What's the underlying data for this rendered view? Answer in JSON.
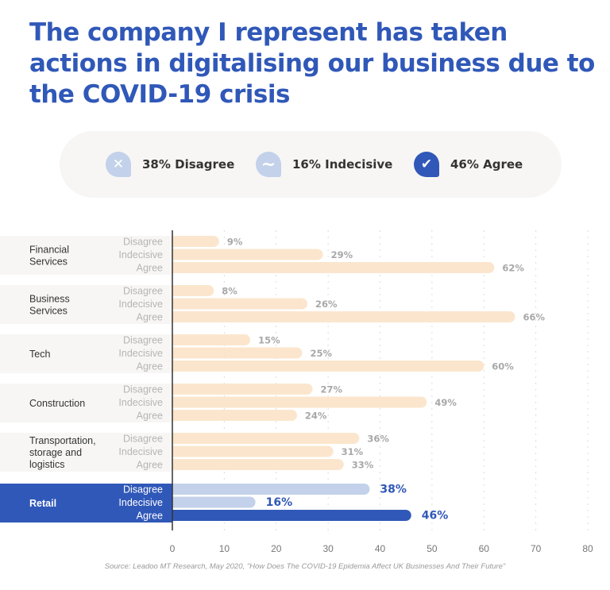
{
  "title": "The company I represent has taken actions in digitalising our business due to the COVID-19 crisis",
  "legend": [
    {
      "label": "38% Disagree",
      "icon": "x-icon",
      "color": "#c3d1ea"
    },
    {
      "label": "16% Indecisive",
      "icon": "tilde-icon",
      "color": "#c3d1ea"
    },
    {
      "label": "46% Agree",
      "icon": "check-icon",
      "color": "#3058b8"
    }
  ],
  "colors": {
    "bar": "#fbe6cd",
    "highlight_light": "#c3d1ea",
    "highlight_dark": "#3058b8",
    "value_label": "#a8a8a8",
    "band": "#f7f6f4"
  },
  "chart_data": {
    "type": "bar",
    "orientation": "horizontal",
    "response_labels": [
      "Disagree",
      "Indecisive",
      "Agree"
    ],
    "groups": [
      {
        "name": "Financial Services",
        "values": [
          9,
          29,
          62
        ],
        "labels": [
          "9%",
          "29%",
          "62%"
        ]
      },
      {
        "name": "Business Services",
        "values": [
          8,
          26,
          66
        ],
        "labels": [
          "8%",
          "26%",
          "66%"
        ]
      },
      {
        "name": "Tech",
        "values": [
          15,
          25,
          60
        ],
        "labels": [
          "15%",
          "25%",
          "60%"
        ]
      },
      {
        "name": "Construction",
        "values": [
          27,
          49,
          24
        ],
        "labels": [
          "27%",
          "49%",
          "24%"
        ]
      },
      {
        "name": "Transportation, storage and logistics",
        "values": [
          36,
          31,
          33
        ],
        "labels": [
          "36%",
          "31%",
          "33%"
        ]
      },
      {
        "name": "Retail",
        "values": [
          38,
          16,
          46
        ],
        "labels": [
          "38%",
          "16%",
          "46%"
        ],
        "highlighted": true
      }
    ],
    "xlim": [
      0,
      80
    ],
    "xticks": [
      "0",
      "10",
      "20",
      "30",
      "40",
      "50",
      "60",
      "70",
      "80"
    ],
    "grid": true
  },
  "source": "Source: Leadoo MT Research, May 2020, \"How Does The COVID-19 Epidemia Affect UK Businesses And Their Future\""
}
